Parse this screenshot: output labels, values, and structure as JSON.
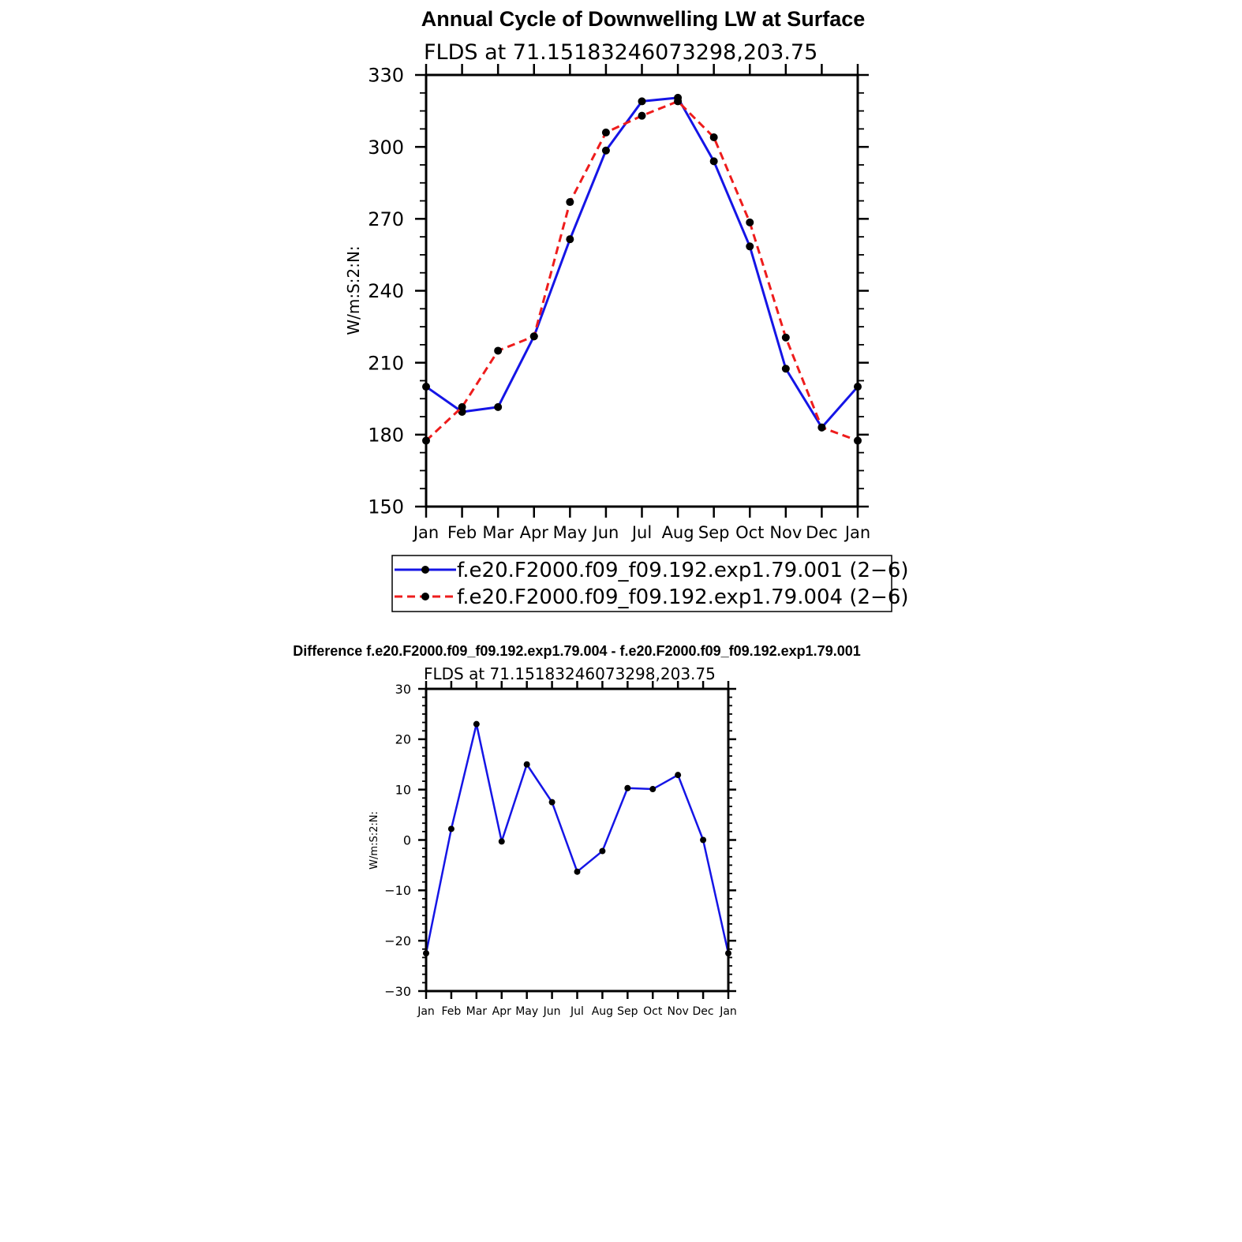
{
  "chart_data": [
    {
      "type": "line",
      "title": "Annual Cycle of Downwelling LW at Surface",
      "subtitle": "FLDS at 71.15183246073298,203.75",
      "ylabel": "W/m:S:2:N:",
      "xlabel": "",
      "categories": [
        "Jan",
        "Feb",
        "Mar",
        "Apr",
        "May",
        "Jun",
        "Jul",
        "Aug",
        "Sep",
        "Oct",
        "Nov",
        "Dec",
        "Jan"
      ],
      "ylim": [
        150,
        330
      ],
      "yticks": [
        "150",
        "180",
        "210",
        "240",
        "270",
        "300",
        "330"
      ],
      "grid": false,
      "legend_position": "bottom",
      "series": [
        {
          "name": "f.e20.F2000.f09_f09.192.exp1.79.001 (2−6)",
          "color": "#1515e6",
          "dash": "solid",
          "values": [
            200,
            189.5,
            191.5,
            221,
            261.5,
            298.5,
            319,
            320.5,
            294,
            258.5,
            207.5,
            183,
            200
          ]
        },
        {
          "name": "f.e20.F2000.f09_f09.192.exp1.79.004 (2−6)",
          "color": "#ee1c1c",
          "dash": "dashed",
          "values": [
            177.5,
            191.5,
            215,
            221,
            277,
            306,
            313,
            319,
            304,
            268.5,
            220.5,
            183,
            177.5
          ]
        }
      ]
    },
    {
      "type": "line",
      "title": "Difference f.e20.F2000.f09_f09.192.exp1.79.004 - f.e20.F2000.f09_f09.192.exp1.79.001",
      "subtitle": "FLDS at 71.15183246073298,203.75",
      "ylabel": "W/m:S:2:N:",
      "xlabel": "",
      "categories": [
        "Jan",
        "Feb",
        "Mar",
        "Apr",
        "May",
        "Jun",
        "Jul",
        "Aug",
        "Sep",
        "Oct",
        "Nov",
        "Dec",
        "Jan"
      ],
      "ylim": [
        -30,
        30
      ],
      "yticks": [
        "−30",
        "−20",
        "−10",
        "0",
        "10",
        "20",
        "30"
      ],
      "grid": false,
      "series": [
        {
          "name": "difference",
          "color": "#1515e6",
          "dash": "solid",
          "values": [
            -22.5,
            2.2,
            23,
            -0.3,
            15,
            7.5,
            -6.3,
            -2.2,
            10.3,
            10.1,
            12.9,
            0,
            -22.5
          ]
        }
      ]
    }
  ]
}
